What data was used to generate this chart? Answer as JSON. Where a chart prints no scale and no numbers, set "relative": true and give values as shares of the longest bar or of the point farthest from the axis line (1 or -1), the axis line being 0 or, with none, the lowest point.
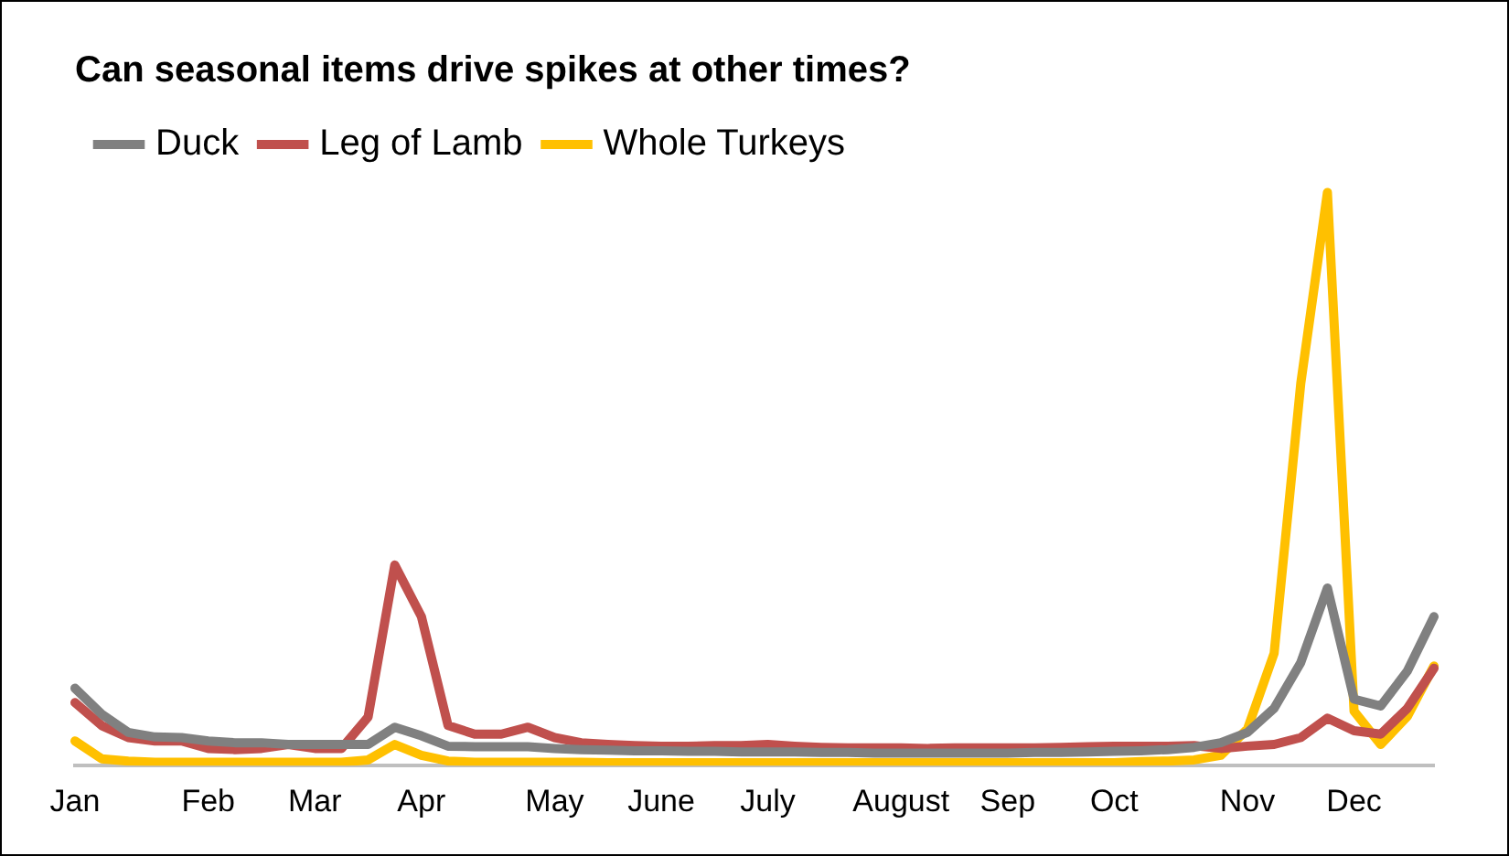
{
  "chart_data": {
    "type": "line",
    "title": "Can seasonal items drive spikes at other times?",
    "relative": true,
    "legend": "top",
    "marker": "none",
    "line_style": "solid",
    "grid": false,
    "categories": [
      "Jan",
      null,
      null,
      null,
      null,
      "Feb",
      null,
      null,
      null,
      "Mar",
      null,
      null,
      null,
      "Apr",
      null,
      null,
      null,
      null,
      "May",
      null,
      null,
      null,
      "June",
      null,
      null,
      null,
      "July",
      null,
      null,
      null,
      null,
      "August",
      null,
      null,
      null,
      "Sep",
      null,
      null,
      null,
      "Oct",
      null,
      null,
      null,
      null,
      "Nov",
      null,
      null,
      null,
      "Dec",
      null,
      null,
      null
    ],
    "series": [
      {
        "name": "Duck",
        "color": "#808080",
        "values": [
          0.135,
          0.09,
          0.058,
          0.05,
          0.049,
          0.043,
          0.04,
          0.04,
          0.037,
          0.037,
          0.037,
          0.037,
          0.067,
          0.052,
          0.034,
          0.033,
          0.033,
          0.033,
          0.03,
          0.028,
          0.027,
          0.026,
          0.026,
          0.025,
          0.025,
          0.024,
          0.024,
          0.024,
          0.023,
          0.023,
          0.022,
          0.022,
          0.022,
          0.022,
          0.022,
          0.022,
          0.023,
          0.023,
          0.024,
          0.025,
          0.026,
          0.028,
          0.032,
          0.04,
          0.058,
          0.1,
          0.18,
          0.31,
          0.116,
          0.104,
          0.165,
          0.26
        ]
      },
      {
        "name": "Leg of Lamb",
        "color": "#c0504d",
        "values": [
          0.11,
          0.07,
          0.049,
          0.043,
          0.043,
          0.03,
          0.028,
          0.03,
          0.037,
          0.03,
          0.03,
          0.085,
          0.35,
          0.26,
          0.07,
          0.055,
          0.055,
          0.067,
          0.049,
          0.04,
          0.037,
          0.035,
          0.034,
          0.034,
          0.035,
          0.035,
          0.037,
          0.034,
          0.032,
          0.031,
          0.031,
          0.031,
          0.03,
          0.031,
          0.031,
          0.031,
          0.031,
          0.032,
          0.033,
          0.034,
          0.034,
          0.034,
          0.035,
          0.03,
          0.034,
          0.037,
          0.049,
          0.083,
          0.061,
          0.055,
          0.1,
          0.17
        ]
      },
      {
        "name": "Whole Turkeys",
        "color": "#ffc000",
        "values": [
          0.043,
          0.012,
          0.008,
          0.006,
          0.006,
          0.006,
          0.006,
          0.006,
          0.006,
          0.006,
          0.006,
          0.01,
          0.037,
          0.018,
          0.008,
          0.006,
          0.006,
          0.006,
          0.006,
          0.006,
          0.005,
          0.005,
          0.005,
          0.005,
          0.005,
          0.005,
          0.005,
          0.005,
          0.005,
          0.005,
          0.005,
          0.005,
          0.005,
          0.005,
          0.005,
          0.005,
          0.005,
          0.005,
          0.005,
          0.005,
          0.007,
          0.008,
          0.01,
          0.018,
          0.064,
          0.196,
          0.667,
          1,
          0.095,
          0.037,
          0.086,
          0.174
        ]
      }
    ]
  }
}
